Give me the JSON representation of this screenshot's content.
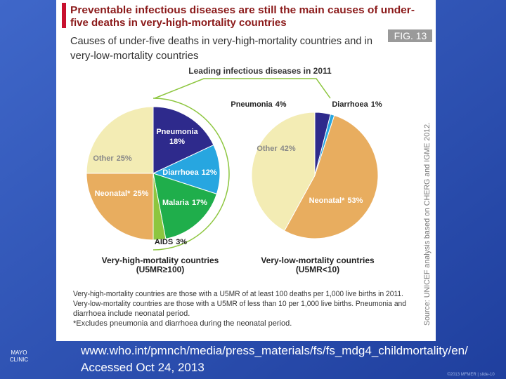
{
  "figure": {
    "title": [
      "Preventable infectious diseases are still the main causes of under-",
      "five deaths in very-high-mortality countries"
    ],
    "subtitle": [
      "Causes of under-five deaths in very-high-mortality countries and in",
      "very-low-mortality countries"
    ],
    "label": "FIG. 13",
    "callout": "Leading infectious diseases in 2011",
    "notes": [
      "Very-high-mortality countries are those with a U5MR of at least 100 deaths per 1,000 live births in 2011.",
      "Very-low-mortality countries are those with a U5MR of less than 10 per 1,000 live births. Pneumonia and",
      "diarrhoea include neonatal period.",
      "*Excludes pneumonia and diarrhoea during the neonatal period."
    ],
    "source": "Source: UNICEF analysis based on CHERG and IGME 2012."
  },
  "chart_data": [
    {
      "type": "pie",
      "title": [
        "Very-high-mortality countries",
        "(U5MR≥100)"
      ],
      "categories": [
        "Pneumonia",
        "Diarrhoea",
        "Malaria",
        "AIDS",
        "Neonatal*",
        "Other"
      ],
      "values": [
        18,
        12,
        17,
        3,
        25,
        25
      ],
      "value_labels": [
        "18%",
        "12%",
        "17%",
        "3%",
        "25%",
        "25%"
      ],
      "colors": [
        "#2e2a8c",
        "#27a6e0",
        "#1fae4b",
        "#8dc63f",
        "#e8ad5f",
        "#f3ecb4"
      ]
    },
    {
      "type": "pie",
      "title": [
        "Very-low-mortality countries",
        "(U5MR<10)"
      ],
      "categories": [
        "Pneumonia",
        "Diarrhoea",
        "Neonatal*",
        "Other"
      ],
      "values": [
        4,
        1,
        53,
        42
      ],
      "value_labels": [
        "4%",
        "1%",
        "53%",
        "42%"
      ],
      "colors": [
        "#2e2a8c",
        "#27a6e0",
        "#e8ad5f",
        "#f3ecb4"
      ]
    }
  ],
  "slide": {
    "url": "www.who.int/pmnch/media/press_materials/fs/fs_mdg4_childmortality/en/",
    "accessed": "Accessed Oct 24, 2013",
    "logo": [
      "MAYO",
      "CLINIC"
    ],
    "footer": "©2013 MFMER | slide-10"
  }
}
